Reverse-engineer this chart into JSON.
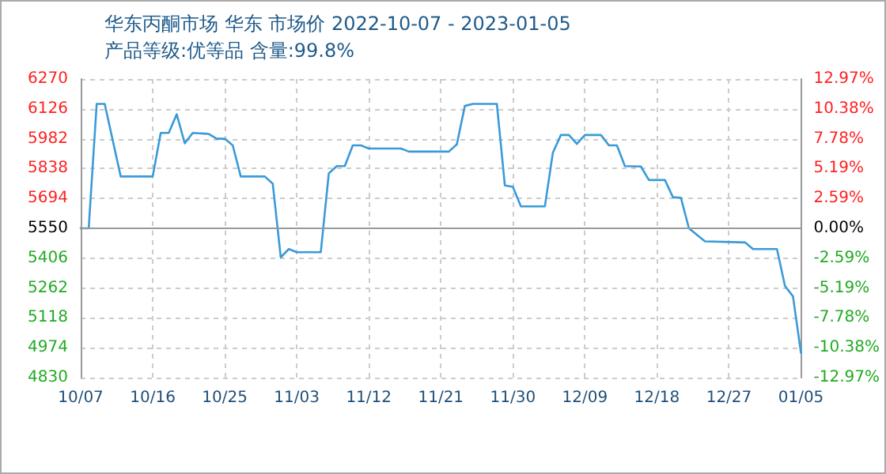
{
  "chart_data": {
    "type": "line",
    "title": "华东丙酮市场 华东 市场价 2022-10-07 - 2023-01-05",
    "subtitle": "产品等级:优等品 含量:99.8%",
    "x": [
      "2022-10-07",
      "2022-10-08",
      "2022-10-09",
      "2022-10-10",
      "2022-10-12",
      "2022-10-16",
      "2022-10-17",
      "2022-10-18",
      "2022-10-19",
      "2022-10-20",
      "2022-10-21",
      "2022-10-23",
      "2022-10-24",
      "2022-10-25",
      "2022-10-26",
      "2022-10-27",
      "2022-10-30",
      "2022-10-31",
      "2022-11-01",
      "2022-11-02",
      "2022-11-03",
      "2022-11-06",
      "2022-11-07",
      "2022-11-08",
      "2022-11-09",
      "2022-11-10",
      "2022-11-11",
      "2022-11-12",
      "2022-11-16",
      "2022-11-17",
      "2022-11-22",
      "2022-11-23",
      "2022-11-24",
      "2022-11-25",
      "2022-11-28",
      "2022-11-29",
      "2022-11-30",
      "2022-12-01",
      "2022-12-04",
      "2022-12-05",
      "2022-12-06",
      "2022-12-07",
      "2022-12-08",
      "2022-12-09",
      "2022-12-11",
      "2022-12-12",
      "2022-12-13",
      "2022-12-14",
      "2022-12-16",
      "2022-12-17",
      "2022-12-19",
      "2022-12-20",
      "2022-12-21",
      "2022-12-22",
      "2022-12-24",
      "2022-12-29",
      "2022-12-30",
      "2023-01-02",
      "2023-01-03",
      "2023-01-04",
      "2023-01-05"
    ],
    "series": [
      {
        "color": "#3a9ad9",
        "values": [
          5550,
          5550,
          6150,
          6150,
          5800,
          5800,
          6010,
          6010,
          6100,
          5960,
          6010,
          6005,
          5982,
          5982,
          5950,
          5800,
          5800,
          5765,
          5410,
          5450,
          5435,
          5435,
          5815,
          5850,
          5850,
          5950,
          5950,
          5935,
          5935,
          5920,
          5920,
          5955,
          6140,
          6150,
          6150,
          5757,
          5750,
          5656,
          5656,
          5915,
          6000,
          6000,
          5957,
          6000,
          6000,
          5950,
          5950,
          5850,
          5848,
          5783,
          5783,
          5700,
          5697,
          5550,
          5487,
          5482,
          5450,
          5450,
          5272,
          5222,
          4949
        ]
      }
    ],
    "xlim": [
      "2022-10-07",
      "2023-01-05"
    ],
    "xticks": [
      {
        "value": "2022-10-07",
        "label": "10/07"
      },
      {
        "value": "2022-10-16",
        "label": "10/16"
      },
      {
        "value": "2022-10-25",
        "label": "10/25"
      },
      {
        "value": "2022-11-03",
        "label": "11/03"
      },
      {
        "value": "2022-11-12",
        "label": "11/12"
      },
      {
        "value": "2022-11-21",
        "label": "11/21"
      },
      {
        "value": "2022-11-30",
        "label": "11/30"
      },
      {
        "value": "2022-12-09",
        "label": "12/09"
      },
      {
        "value": "2022-12-18",
        "label": "12/18"
      },
      {
        "value": "2022-12-27",
        "label": "12/27"
      },
      {
        "value": "2023-01-05",
        "label": "01/05"
      }
    ],
    "ylim": [
      4830,
      6270
    ],
    "yticks": [
      4830,
      4974,
      5118,
      5262,
      5406,
      5550,
      5694,
      5838,
      5982,
      6126,
      6270
    ],
    "y2lim": [
      -12.97,
      12.97
    ],
    "y2ticks": [
      {
        "value": -12.97,
        "label": "-12.97%"
      },
      {
        "value": -10.38,
        "label": "-10.38%"
      },
      {
        "value": -7.78,
        "label": "-7.78%"
      },
      {
        "value": -5.19,
        "label": "-5.19%"
      },
      {
        "value": -2.59,
        "label": "-2.59%"
      },
      {
        "value": 0,
        "label": "0.00%"
      },
      {
        "value": 2.59,
        "label": "2.59%"
      },
      {
        "value": 5.19,
        "label": "5.19%"
      },
      {
        "value": 7.78,
        "label": "7.78%"
      },
      {
        "value": 10.38,
        "label": "10.38%"
      },
      {
        "value": 12.97,
        "label": "12.97%"
      }
    ],
    "ref_lines": [
      {
        "axis": "y",
        "value": 5550,
        "color": "#999999"
      }
    ],
    "grid": true,
    "marker": "none",
    "line_style": "solid"
  }
}
